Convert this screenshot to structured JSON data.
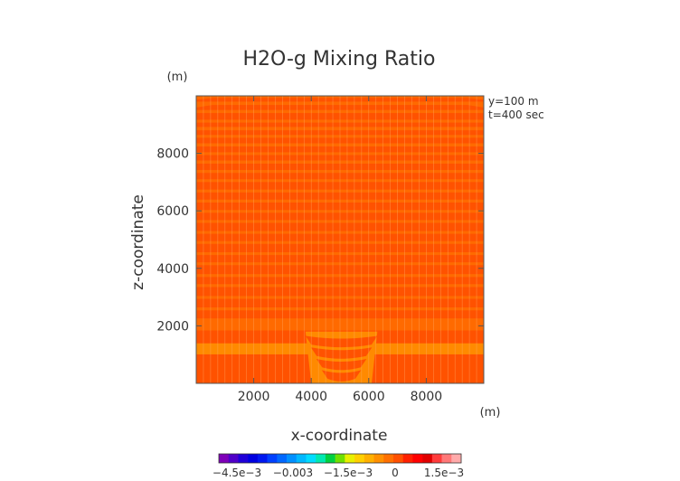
{
  "chart_data": {
    "type": "heatmap",
    "title": "H2O-g Mixing Ratio",
    "xlabel": "x-coordinate",
    "ylabel": "z-coordinate",
    "x_unit": "(m)",
    "y_unit": "(m)",
    "xlim": [
      0,
      10000
    ],
    "ylim": [
      0,
      10000
    ],
    "x_ticks": [
      {
        "value": 2000,
        "label": "2000"
      },
      {
        "value": 4000,
        "label": "4000"
      },
      {
        "value": 6000,
        "label": "6000"
      },
      {
        "value": 8000,
        "label": "8000"
      }
    ],
    "y_ticks": [
      {
        "value": 2000,
        "label": "2000"
      },
      {
        "value": 4000,
        "label": "4000"
      },
      {
        "value": 6000,
        "label": "6000"
      },
      {
        "value": 8000,
        "label": "8000"
      }
    ],
    "annotations": [
      "y=100 m",
      "t=400 sec"
    ],
    "colorbar": {
      "range": [
        -0.006,
        0.002
      ],
      "tick_labels": [
        "−4.5e−3",
        "−0.003",
        "−1.5e−3",
        "0",
        "1.5e−3"
      ],
      "colors": [
        "#7e00b8",
        "#5000c8",
        "#2000d8",
        "#0000e0",
        "#0018f0",
        "#0040ff",
        "#0068ff",
        "#0090ff",
        "#00b8ff",
        "#00dcff",
        "#00e8b0",
        "#00d040",
        "#70e000",
        "#e8f000",
        "#ffd000",
        "#ffb000",
        "#ff9000",
        "#ff7000",
        "#ff5000",
        "#ff2000",
        "#ff0000",
        "#e00000",
        "#ff3c3c",
        "#ff7878",
        "#ffaaaa"
      ]
    },
    "field": {
      "background_color": "#ff6a00",
      "band_color": "#ff5200",
      "light_color": "#ff8a00",
      "bands": [
        {
          "z0": 9930,
          "z1": 9800,
          "color": "band"
        },
        {
          "z0": 9680,
          "z1": 9510,
          "color": "band"
        },
        {
          "z0": 9400,
          "z1": 9170,
          "color": "band"
        },
        {
          "z0": 9070,
          "z1": 8920,
          "color": "band"
        },
        {
          "z0": 8800,
          "z1": 8640,
          "color": "band"
        },
        {
          "z0": 8540,
          "z1": 8350,
          "color": "band"
        },
        {
          "z0": 8240,
          "z1": 8040,
          "color": "band"
        },
        {
          "z0": 7940,
          "z1": 7750,
          "color": "band"
        },
        {
          "z0": 7640,
          "z1": 7420,
          "color": "band"
        },
        {
          "z0": 7320,
          "z1": 7100,
          "color": "band"
        },
        {
          "z0": 7000,
          "z1": 6740,
          "color": "band"
        },
        {
          "z0": 6640,
          "z1": 6390,
          "color": "band"
        },
        {
          "z0": 6290,
          "z1": 6030,
          "color": "band"
        },
        {
          "z0": 5930,
          "z1": 5680,
          "color": "band"
        },
        {
          "z0": 5580,
          "z1": 5300,
          "color": "band"
        },
        {
          "z0": 5200,
          "z1": 4950,
          "color": "band"
        },
        {
          "z0": 4850,
          "z1": 4560,
          "color": "band"
        },
        {
          "z0": 4460,
          "z1": 4210,
          "color": "band"
        },
        {
          "z0": 4110,
          "z1": 3800,
          "color": "band"
        },
        {
          "z0": 3700,
          "z1": 3450,
          "color": "band"
        },
        {
          "z0": 3350,
          "z1": 3040,
          "color": "band"
        },
        {
          "z0": 2940,
          "z1": 2640,
          "color": "band"
        },
        {
          "z0": 2540,
          "z1": 2260,
          "color": "band"
        },
        {
          "z0": 1840,
          "z1": 1390,
          "color": "band"
        },
        {
          "z0": 1010,
          "z1": 0,
          "color": "band"
        }
      ],
      "light_band": {
        "z0": 1390,
        "z1": 1010
      },
      "plume": {
        "x_edges": [
          3800,
          4000,
          6100,
          6300
        ],
        "layers": [
          {
            "z0": 1650,
            "z1": 1350
          },
          {
            "z0": 1250,
            "z1": 950
          },
          {
            "z0": 850,
            "z1": 560
          },
          {
            "z0": 460,
            "z1": 160
          }
        ]
      }
    }
  }
}
